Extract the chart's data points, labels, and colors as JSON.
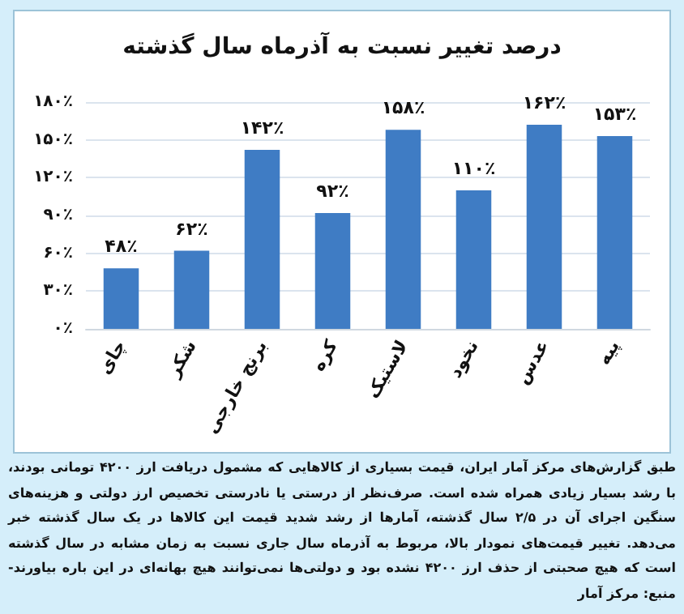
{
  "chart_data": {
    "type": "bar",
    "title": "درصد تغییر نسبت به آذرماه سال گذشته",
    "categories": [
      "چای",
      "شکر",
      "برنج خارجی",
      "کره",
      "لاستیک",
      "نخود",
      "عدس",
      "پیه"
    ],
    "values": [
      48,
      62,
      142,
      92,
      158,
      110,
      162,
      153
    ],
    "value_labels": [
      "۴۸٪",
      "۶۲٪",
      "۱۴۲٪",
      "۹۲٪",
      "۱۵۸٪",
      "۱۱۰٪",
      "۱۶۲٪",
      "۱۵۳٪"
    ],
    "color": "#3f7cc4",
    "ylim": [
      0,
      180
    ],
    "yticks": [
      {
        "value": 0,
        "label": "۰٪"
      },
      {
        "value": 30,
        "label": "۳۰٪"
      },
      {
        "value": 60,
        "label": "۶۰٪"
      },
      {
        "value": 90,
        "label": "۹۰٪"
      },
      {
        "value": 120,
        "label": "۱۲۰٪"
      },
      {
        "value": 150,
        "label": "۱۵۰٪"
      },
      {
        "value": 180,
        "label": "۱۸۰٪"
      }
    ],
    "grid": "y",
    "annotations": [
      "طبق گزارش‌های مرکز آمار ایران، قیمت بسیاری از کالاهایی که مشمول دریافت ارز ۴۲۰۰ تومانی بودند، با رشد بسیار زیادی همراه شده است. صرف‌نظر از درستی یا نادرستی تخصیص ارز دولتی و هزینه‌های سنگین اجرای آن در ۲/۵ سال گذشته، آمارها از رشد شدید قیمت این کالاها در یک سال گذشته خبر می‌دهد. تغییر قیمت‌های نمودار بالا، مربوط به آذرماه سال جاری نسبت به زمان مشابه در سال گذشته است که هیچ صحبتی از حذف ارز ۴۲۰۰ نشده بود و دولتی‌ها نمی‌توانند هیچ بهانه‌ای در این باره بیاورند- منبع: مرکز آمار"
    ]
  }
}
